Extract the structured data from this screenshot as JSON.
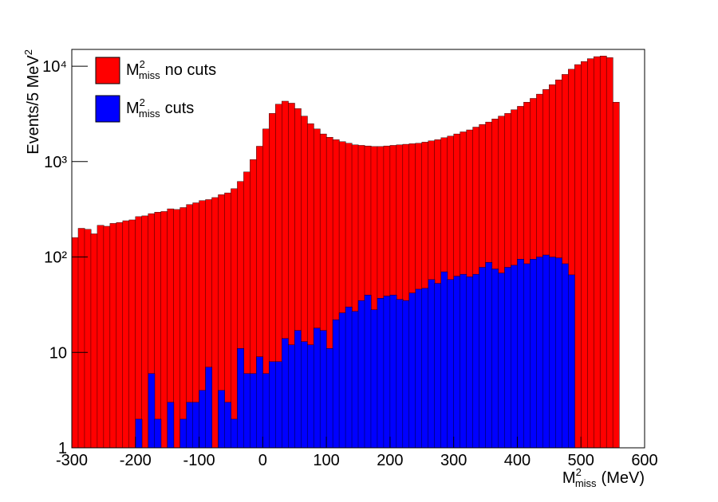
{
  "chart_data": {
    "type": "histogram",
    "log_y": true,
    "legend": "top-left",
    "quantity": {
      "symbol": "M",
      "sup": "2",
      "sub": "miss"
    },
    "x_label_unit": "(MeV)",
    "y_label": {
      "text": "Events/5 MeV",
      "sup": "2"
    },
    "bins": [
      -300,
      -290,
      -280,
      -270,
      -260,
      -250,
      -240,
      -230,
      -220,
      -210,
      -200,
      -190,
      -180,
      -170,
      -160,
      -150,
      -140,
      -130,
      -120,
      -110,
      -100,
      -90,
      -80,
      -70,
      -60,
      -50,
      -40,
      -30,
      -20,
      -10,
      0,
      10,
      20,
      30,
      40,
      50,
      60,
      70,
      80,
      90,
      100,
      110,
      120,
      130,
      140,
      150,
      160,
      170,
      180,
      190,
      200,
      210,
      220,
      230,
      240,
      250,
      260,
      270,
      280,
      290,
      300,
      310,
      320,
      330,
      340,
      350,
      360,
      370,
      380,
      390,
      400,
      410,
      420,
      430,
      440,
      450,
      460,
      470,
      480,
      490,
      500,
      510,
      520,
      530,
      540,
      550,
      560
    ],
    "series": [
      {
        "name": "no cuts",
        "color": "#ff0000",
        "values": [
          160,
          200,
          195,
          175,
          215,
          210,
          225,
          230,
          240,
          245,
          265,
          270,
          285,
          295,
          300,
          320,
          315,
          330,
          355,
          370,
          390,
          400,
          420,
          450,
          470,
          520,
          620,
          780,
          1050,
          1450,
          2200,
          3200,
          4000,
          4300,
          4100,
          3600,
          3000,
          2500,
          2200,
          1950,
          1800,
          1700,
          1620,
          1560,
          1500,
          1480,
          1460,
          1440,
          1440,
          1460,
          1480,
          1500,
          1520,
          1540,
          1560,
          1600,
          1650,
          1700,
          1780,
          1850,
          1950,
          2050,
          2150,
          2300,
          2450,
          2600,
          2800,
          3000,
          3200,
          3500,
          3800,
          4200,
          4600,
          5100,
          5700,
          6400,
          7200,
          8200,
          9300,
          10400,
          11200,
          12000,
          12600,
          12800,
          12300,
          4200
        ]
      },
      {
        "name": "cuts",
        "color": "#0000ff",
        "values": [
          0,
          0,
          0,
          0,
          0,
          0,
          0,
          0,
          0,
          0,
          2,
          0,
          6,
          2,
          0,
          3,
          0,
          2,
          3,
          3,
          4,
          7,
          0,
          4,
          3,
          2,
          11,
          6,
          6,
          9,
          6,
          8,
          8,
          14,
          12,
          17,
          13,
          12,
          18,
          17,
          11,
          22,
          26,
          30,
          27,
          35,
          40,
          28,
          37,
          39,
          40,
          36,
          35,
          42,
          46,
          47,
          58,
          53,
          70,
          58,
          63,
          66,
          62,
          66,
          78,
          88,
          75,
          68,
          78,
          82,
          95,
          85,
          95,
          100,
          105,
          100,
          98,
          85,
          65,
          0,
          0,
          0,
          0,
          0,
          0,
          0
        ]
      }
    ],
    "xlim": [
      -300,
      600
    ],
    "xticks": [
      -300,
      -200,
      -100,
      0,
      100,
      200,
      300,
      400,
      500,
      600
    ],
    "ylim": [
      1,
      15000
    ],
    "yticks": [
      1,
      10,
      {
        "value": 100,
        "label": "10²"
      },
      {
        "value": 1000,
        "label": "10³"
      },
      {
        "value": 10000,
        "label": "10⁴"
      }
    ]
  }
}
